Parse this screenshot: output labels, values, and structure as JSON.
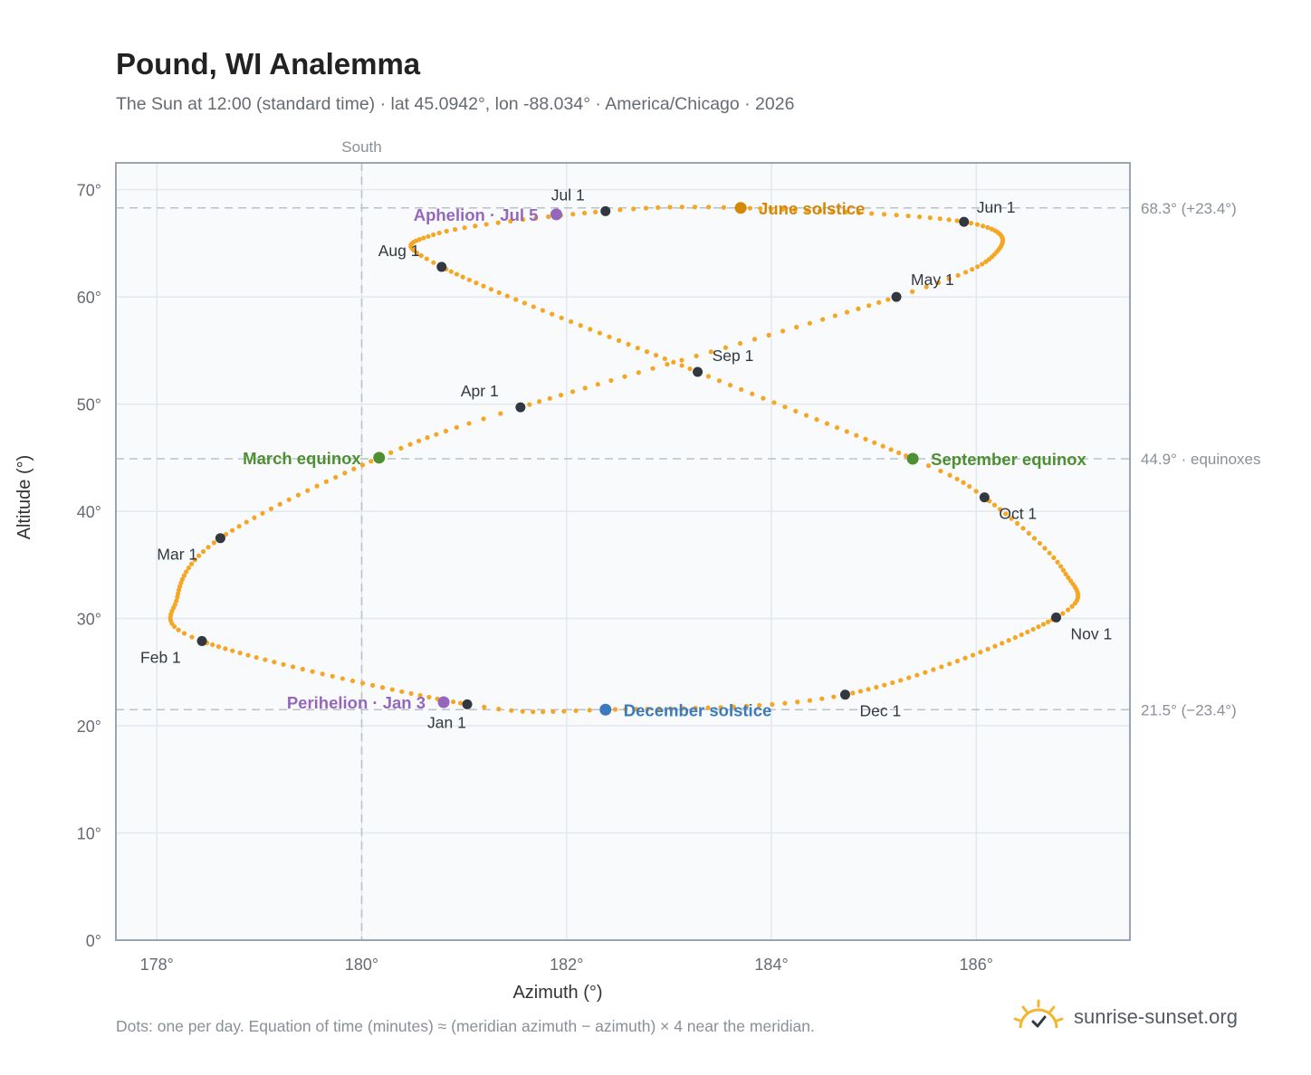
{
  "header": {
    "title": "Pound, WI Analemma",
    "subtitle": "The Sun at 12:00 (standard time) · lat 45.0942°, lon -88.034° · America/Chicago · 2026"
  },
  "footer": {
    "note": "Dots: one per day. Equation of time (minutes) ≈ (meridian azimuth − azimuth) × 4 near the meridian.",
    "brand": "sunrise-sunset.org"
  },
  "colors": {
    "curve": "#f5a623",
    "month_marker": "#333840",
    "aphelion_perihelion": "#9467bd",
    "june_solstice": "#d48806",
    "december_solstice": "#3a7abd",
    "equinox": "#4e8f32",
    "plot_bg": "#f8fafc",
    "grid": "#e3e8ef",
    "reference_line": "#b8c2cc",
    "axis_text": "#666a72"
  },
  "chart_data": {
    "type": "scatter",
    "xlabel": "Azimuth (°)",
    "ylabel": "Altitude (°)",
    "xlim": [
      177.6,
      187.5
    ],
    "ylim": [
      0,
      72.5
    ],
    "xticks": [
      178,
      180,
      182,
      184,
      186
    ],
    "xtick_labels": [
      "178°",
      "180°",
      "182°",
      "184°",
      "186°"
    ],
    "yticks": [
      0,
      10,
      20,
      30,
      40,
      50,
      60,
      70
    ],
    "ytick_labels": [
      "0°",
      "10°",
      "20°",
      "30°",
      "40°",
      "50°",
      "60°",
      "70°"
    ],
    "grid": true,
    "meridian": {
      "azimuth": 180,
      "label": "South"
    },
    "reference_lines": [
      {
        "altitude": 68.3,
        "label": "68.3° (+23.4°)"
      },
      {
        "altitude": 44.9,
        "label": "44.9° · equinoxes"
      },
      {
        "altitude": 21.5,
        "label": "21.5° (−23.4°)"
      }
    ],
    "year": 2026,
    "month_markers": [
      {
        "label": "Jan 1",
        "azimuth": 181.03,
        "altitude": 22.0
      },
      {
        "label": "Feb 1",
        "azimuth": 178.44,
        "altitude": 27.9
      },
      {
        "label": "Mar 1",
        "azimuth": 178.62,
        "altitude": 37.5
      },
      {
        "label": "Apr 1",
        "azimuth": 181.55,
        "altitude": 49.7
      },
      {
        "label": "May 1",
        "azimuth": 185.22,
        "altitude": 60.0
      },
      {
        "label": "Jun 1",
        "azimuth": 185.88,
        "altitude": 67.0
      },
      {
        "label": "Jul 1",
        "azimuth": 182.38,
        "altitude": 68.0
      },
      {
        "label": "Aug 1",
        "azimuth": 180.78,
        "altitude": 62.8
      },
      {
        "label": "Sep 1",
        "azimuth": 183.28,
        "altitude": 53.0
      },
      {
        "label": "Oct 1",
        "azimuth": 186.08,
        "altitude": 41.3
      },
      {
        "label": "Nov 1",
        "azimuth": 186.78,
        "altitude": 30.1
      },
      {
        "label": "Dec 1",
        "azimuth": 184.72,
        "altitude": 22.9
      }
    ],
    "events": [
      {
        "label": "Perihelion · Jan 3",
        "azimuth": 180.8,
        "altitude": 22.2,
        "kind": "aphelion_perihelion"
      },
      {
        "label": "March equinox",
        "azimuth": 180.17,
        "altitude": 45.0,
        "kind": "equinox"
      },
      {
        "label": "June solstice",
        "azimuth": 183.7,
        "altitude": 68.3,
        "kind": "june_solstice"
      },
      {
        "label": "Aphelion · Jul 5",
        "azimuth": 181.9,
        "altitude": 67.7,
        "kind": "aphelion_perihelion"
      },
      {
        "label": "September equinox",
        "azimuth": 185.38,
        "altitude": 44.9,
        "kind": "equinox"
      },
      {
        "label": "December solstice",
        "azimuth": 182.38,
        "altitude": 21.5,
        "kind": "december_solstice"
      }
    ],
    "daily_path_knots": [
      [
        1,
        181.03,
        22.0
      ],
      [
        32,
        178.44,
        27.9
      ],
      [
        45,
        178.2,
        32.0
      ],
      [
        60,
        178.62,
        37.5
      ],
      [
        79,
        180.17,
        45.0
      ],
      [
        91,
        181.55,
        49.7
      ],
      [
        121,
        185.22,
        60.0
      ],
      [
        135,
        186.2,
        64.2
      ],
      [
        152,
        185.88,
        67.0
      ],
      [
        172,
        183.7,
        68.3
      ],
      [
        182,
        182.38,
        68.0
      ],
      [
        198,
        180.7,
        65.8
      ],
      [
        213,
        180.78,
        62.8
      ],
      [
        244,
        183.28,
        53.0
      ],
      [
        266,
        185.38,
        44.9
      ],
      [
        274,
        186.08,
        41.3
      ],
      [
        290,
        186.85,
        34.5
      ],
      [
        305,
        186.78,
        30.1
      ],
      [
        335,
        184.72,
        22.9
      ],
      [
        355,
        182.38,
        21.5
      ],
      [
        366,
        181.03,
        22.0
      ]
    ]
  }
}
